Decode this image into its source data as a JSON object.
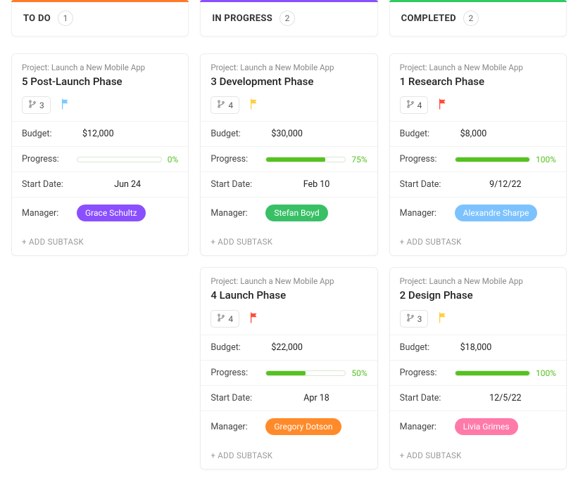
{
  "columns": [
    {
      "title": "TO DO",
      "count": "1",
      "bar_color": "#ff7a29",
      "cards": [
        {
          "project": "Project: Launch a New Mobile App",
          "title": "5 Post-Launch Phase",
          "subtasks": "3",
          "flag_color": "#7cc9ff",
          "budget": "$12,000",
          "progress_pct": "0%",
          "progress_val": 0,
          "progress_fill": "#55c220",
          "progress_text_color": "#55c220",
          "start_date": "Jun 24",
          "manager": "Grace Schultz",
          "manager_bg": "#8a4fff"
        }
      ]
    },
    {
      "title": "IN PROGRESS",
      "count": "2",
      "bar_color": "#8a4fff",
      "cards": [
        {
          "project": "Project: Launch a New Mobile App",
          "title": "3 Development Phase",
          "subtasks": "4",
          "flag_color": "#ffcf3d",
          "budget": "$30,000",
          "progress_pct": "75%",
          "progress_val": 75,
          "progress_fill": "#55c220",
          "progress_text_color": "#55c220",
          "start_date": "Feb 10",
          "manager": "Stefan Boyd",
          "manager_bg": "#39c066"
        },
        {
          "project": "Project: Launch a New Mobile App",
          "title": "4 Launch Phase",
          "subtasks": "4",
          "flag_color": "#ff4d3d",
          "budget": "$22,000",
          "progress_pct": "50%",
          "progress_val": 50,
          "progress_fill": "#55c220",
          "progress_text_color": "#55c220",
          "start_date": "Apr 18",
          "manager": "Gregory Dotson",
          "manager_bg": "#ff8a2a"
        }
      ]
    },
    {
      "title": "COMPLETED",
      "count": "2",
      "bar_color": "#2ecb5f",
      "cards": [
        {
          "project": "Project: Launch a New Mobile App",
          "title": "1 Research Phase",
          "subtasks": "4",
          "flag_color": "#ff4d3d",
          "budget": "$8,000",
          "progress_pct": "100%",
          "progress_val": 100,
          "progress_fill": "#55c220",
          "progress_text_color": "#55c220",
          "start_date": "9/12/22",
          "manager": "Alexandre Sharpe",
          "manager_bg": "#7cc2ff"
        },
        {
          "project": "Project: Launch a New Mobile App",
          "title": "2 Design Phase",
          "subtasks": "3",
          "flag_color": "#ffcf3d",
          "budget": "$18,000",
          "progress_pct": "100%",
          "progress_val": 100,
          "progress_fill": "#55c220",
          "progress_text_color": "#55c220",
          "start_date": "12/5/22",
          "manager": "Livia Grimes",
          "manager_bg": "#ff7aa8"
        }
      ]
    }
  ],
  "labels": {
    "budget": "Budget:",
    "progress": "Progress:",
    "start_date": "Start Date:",
    "manager": "Manager:",
    "add_subtask": "+ ADD SUBTASK"
  }
}
